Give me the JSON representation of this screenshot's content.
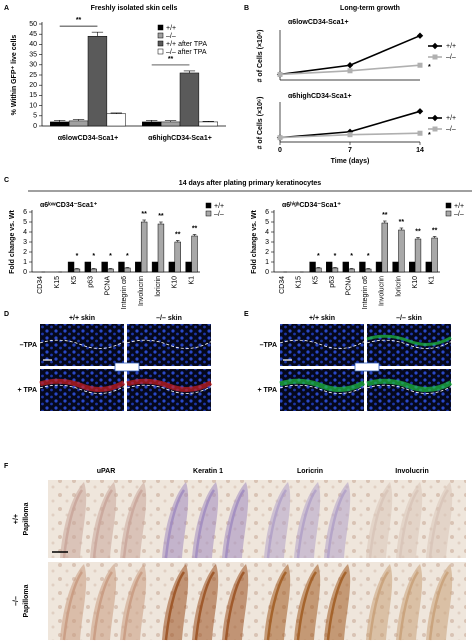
{
  "chart_data": [
    {
      "type": "bar",
      "title": "Freshly isolated skin cells",
      "y_label": "% Within GFP⁺ live cells",
      "categories": [
        "α6lowCD34-Sca1+",
        "α6highCD34-Sca1+"
      ],
      "series": [
        {
          "name": "+/+",
          "color": "#000000",
          "values": [
            2,
            2
          ],
          "errors": [
            0.8,
            0.8
          ]
        },
        {
          "name": "–/–",
          "color": "#a0a0a0",
          "values": [
            2.5,
            2
          ],
          "errors": [
            0.7,
            0.6
          ]
        },
        {
          "name": "+/+ after TPA",
          "color": "#5a5a5a",
          "values": [
            44,
            26
          ],
          "errors": [
            2,
            1
          ]
        },
        {
          "name": "–/– after TPA",
          "color": "#ffffff",
          "values": [
            6,
            2
          ],
          "errors": [
            0.4,
            0.3
          ]
        }
      ],
      "significance": [
        "**",
        "**"
      ],
      "ylim": [
        0,
        50
      ],
      "yticks": [
        0,
        5,
        10,
        15,
        20,
        25,
        30,
        35,
        40,
        45,
        50
      ]
    },
    {
      "type": "line",
      "title": "Long-term growth",
      "subtitle": "α6lowCD34-Sca1+",
      "y_label": "# of Cells (×10⁶)",
      "x": [
        0,
        7,
        14
      ],
      "xlim": [
        0,
        14
      ],
      "ylim": [
        0,
        2.6
      ],
      "series": [
        {
          "name": "+/+",
          "color": "#000000",
          "marker": "diamond",
          "values": [
            0.3,
            0.8,
            2.4
          ]
        },
        {
          "name": "–/–",
          "color": "#b0b0b0",
          "marker": "square",
          "values": [
            0.3,
            0.5,
            0.8
          ],
          "end_label": "*"
        }
      ]
    },
    {
      "type": "line",
      "subtitle": "α6highCD34-Sca1+",
      "y_label": "# of Cells (×10⁶)",
      "x_label": "Time (days)",
      "x": [
        0,
        7,
        14
      ],
      "xlim": [
        0,
        14
      ],
      "xticks": [
        0,
        7,
        14
      ],
      "ylim": [
        0,
        2.6
      ],
      "series": [
        {
          "name": "+/+",
          "color": "#000000",
          "marker": "diamond",
          "values": [
            0.3,
            0.7,
            2.1
          ]
        },
        {
          "name": "–/–",
          "color": "#b0b0b0",
          "marker": "square",
          "values": [
            0.3,
            0.5,
            0.6
          ],
          "end_label": "*"
        }
      ]
    },
    {
      "type": "bar",
      "title": "14 days after plating primary keratinocytes",
      "subtitle": "α6ˡᵒʷCD34⁻Sca1⁺",
      "y_label": "Fold change vs. Wt",
      "categories": [
        "CD34",
        "K15",
        "K5",
        "p63",
        "PCNA",
        "Integrin α6",
        "Involucrin",
        "loricrin",
        "K10",
        "K1"
      ],
      "series": [
        {
          "name": "+/+",
          "color": "#000000",
          "values": [
            0,
            0,
            1,
            1,
            1,
            1,
            1,
            1,
            1,
            1
          ]
        },
        {
          "name": "–/–",
          "color": "#a8a8a8",
          "values": [
            0,
            0,
            0.3,
            0.3,
            0.3,
            0.4,
            5,
            4.8,
            3,
            3.6
          ],
          "errors": [
            0,
            0,
            0.05,
            0.05,
            0.05,
            0.05,
            0.2,
            0.2,
            0.15,
            0.15
          ],
          "significance": [
            null,
            null,
            "*",
            "*",
            "*",
            "*",
            "**",
            "**",
            "**",
            "**"
          ]
        }
      ],
      "ylim": [
        0,
        6
      ],
      "yticks": [
        0,
        1,
        2,
        3,
        4,
        5,
        6
      ]
    },
    {
      "type": "bar",
      "subtitle": "α6ʰⁱᵍʰCD34⁻Sca1⁺",
      "y_label": "Fold change vs. Wt",
      "categories": [
        "CD34",
        "K15",
        "K5",
        "p63",
        "PCNA",
        "Integrin α6",
        "Involucrin",
        "loricrin",
        "K10",
        "K1"
      ],
      "series": [
        {
          "name": "+/+",
          "color": "#000000",
          "values": [
            0,
            0,
            1,
            1,
            1,
            1,
            1,
            1,
            1,
            1
          ]
        },
        {
          "name": "–/–",
          "color": "#a8a8a8",
          "values": [
            0,
            0,
            0.4,
            0.4,
            0.3,
            0.3,
            4.9,
            4.2,
            3.3,
            3.4
          ],
          "errors": [
            0,
            0,
            0.05,
            0.05,
            0.05,
            0.05,
            0.2,
            0.2,
            0.15,
            0.15
          ],
          "significance": [
            null,
            null,
            "*",
            "*",
            "*",
            "*",
            "**",
            "**",
            "**",
            "**"
          ]
        }
      ],
      "ylim": [
        0,
        6
      ],
      "yticks": [
        0,
        1,
        2,
        3,
        4,
        5,
        6
      ]
    }
  ],
  "figure": {
    "panel_labels": [
      "A",
      "B",
      "C",
      "D",
      "E",
      "F"
    ],
    "D": {
      "columns": [
        "+/+ skin",
        "–/– skin"
      ],
      "rows": [
        "–TPA",
        "+ TPA"
      ]
    },
    "E": {
      "columns": [
        "+/+ skin",
        "–/– skin"
      ],
      "rows": [
        "–TPA",
        "+ TPA"
      ]
    },
    "F": {
      "columns": [
        "uPAR",
        "Keratin 1",
        "Loricrin",
        "Involucrin"
      ],
      "rows": [
        [
          "+/+",
          "Papilloma"
        ],
        [
          "–/–",
          "Papilloma"
        ]
      ]
    }
  }
}
